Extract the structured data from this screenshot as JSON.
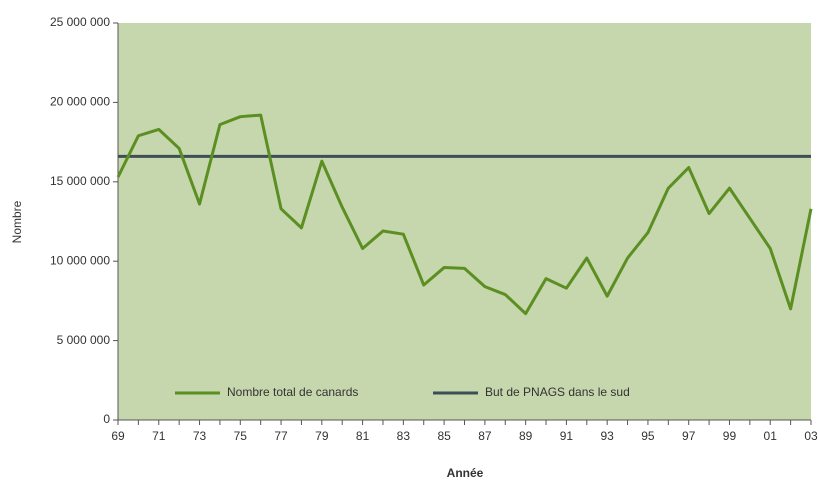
{
  "chart_data": {
    "type": "line",
    "x_label": "Année",
    "y_label": "Nombre",
    "categories": [
      "69",
      null,
      "71",
      null,
      "73",
      null,
      "75",
      null,
      "77",
      null,
      "79",
      null,
      "81",
      null,
      "83",
      null,
      "85",
      null,
      "87",
      null,
      "89",
      null,
      "91",
      null,
      "93",
      null,
      "95",
      null,
      "97",
      null,
      "99",
      null,
      "01",
      null,
      "03"
    ],
    "series": [
      {
        "name": "Nombre total de canards",
        "color": "#5b8f22",
        "values": [
          15300000,
          17900000,
          18300000,
          17100000,
          13600000,
          18600000,
          19100000,
          19200000,
          13300000,
          12100000,
          16300000,
          13400000,
          10800000,
          11900000,
          11700000,
          8500000,
          9600000,
          9550000,
          8400000,
          7900000,
          6700000,
          8900000,
          8300000,
          10200000,
          7800000,
          10200000,
          11800000,
          14600000,
          15900000,
          13000000,
          14600000,
          12700000,
          10800000,
          7000000,
          13300000
        ]
      },
      {
        "name": "But de PNAGS dans le sud",
        "color": "#3d4f55",
        "values": [
          16600000,
          16600000,
          16600000,
          16600000,
          16600000,
          16600000,
          16600000,
          16600000,
          16600000,
          16600000,
          16600000,
          16600000,
          16600000,
          16600000,
          16600000,
          16600000,
          16600000,
          16600000,
          16600000,
          16600000,
          16600000,
          16600000,
          16600000,
          16600000,
          16600000,
          16600000,
          16600000,
          16600000,
          16600000,
          16600000,
          16600000,
          16600000,
          16600000,
          16600000,
          16600000
        ]
      }
    ],
    "ylim": [
      0,
      25000000
    ],
    "yticks": [
      0,
      {
        "value": 5000000,
        "label": "5 000 000"
      },
      {
        "value": 10000000,
        "label": "10 000 000"
      },
      {
        "value": 15000000,
        "label": "15 000 000"
      },
      {
        "value": 20000000,
        "label": "20 000 000"
      },
      {
        "value": 25000000,
        "label": "25 000 000"
      }
    ],
    "plot_background": "#c6d6ad",
    "legend": "bottom"
  }
}
